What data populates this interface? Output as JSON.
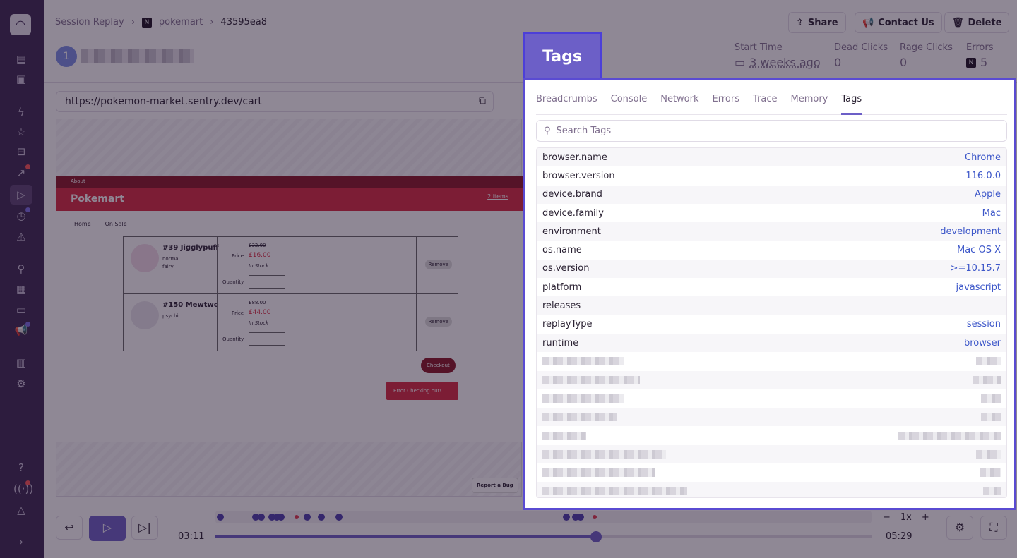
{
  "breadcrumb": [
    "Session Replay",
    "pokemart",
    "43595ea8"
  ],
  "avatar_initial": "1",
  "header_buttons": {
    "share": "Share",
    "contact": "Contact Us",
    "delete": "Delete"
  },
  "stats": {
    "start_time_label": "Start Time",
    "start_time": "3 weeks ago",
    "dead_clicks_label": "Dead Clicks",
    "dead_clicks": "0",
    "rage_clicks_label": "Rage Clicks",
    "rage_clicks": "0",
    "errors_label": "Errors",
    "errors": "5"
  },
  "url": "https://pokemon-market.sentry.dev/cart",
  "site": {
    "about": "About",
    "title": "Pokemart",
    "cart": "2 items",
    "nav": [
      "Home",
      "On Sale"
    ],
    "items": [
      {
        "name": "#39 Jigglypuff",
        "types": "normal\nfairy",
        "old": "£32.00",
        "price_label": "Price",
        "price": "£16.00",
        "stock": "In Stock",
        "qty_label": "Quantity",
        "remove": "Remove"
      },
      {
        "name": "#150 Mewtwo",
        "types": "psychic",
        "old": "£88.00",
        "price_label": "Price",
        "price": "£44.00",
        "stock": "In Stock",
        "qty_label": "Quantity",
        "remove": "Remove"
      }
    ],
    "checkout": "Checkout",
    "error": "Error Checking out!",
    "report": "Report a Bug"
  },
  "player": {
    "current": "03:11",
    "total": "05:29",
    "speed": "1x",
    "progress": 0.58
  },
  "highlight_label": "Tags",
  "panel": {
    "tabs": [
      "Breadcrumbs",
      "Console",
      "Network",
      "Errors",
      "Trace",
      "Memory",
      "Tags"
    ],
    "active_tab": "Tags",
    "search_placeholder": "Search Tags",
    "tags": [
      {
        "k": "browser.name",
        "v": "Chrome"
      },
      {
        "k": "browser.version",
        "v": "116.0.0"
      },
      {
        "k": "device.brand",
        "v": "Apple"
      },
      {
        "k": "device.family",
        "v": "Mac"
      },
      {
        "k": "environment",
        "v": "development"
      },
      {
        "k": "os.name",
        "v": "Mac OS X"
      },
      {
        "k": "os.version",
        "v": ">=10.15.7"
      },
      {
        "k": "platform",
        "v": "javascript"
      },
      {
        "k": "releases",
        "v": ""
      },
      {
        "k": "replayType",
        "v": "session"
      },
      {
        "k": "runtime",
        "v": "browser"
      }
    ]
  },
  "colors": {
    "accent": "#6c5fc7",
    "highlight_border": "#5a4bd2",
    "sidebar": "#3a2650",
    "link": "#3d57c9"
  }
}
